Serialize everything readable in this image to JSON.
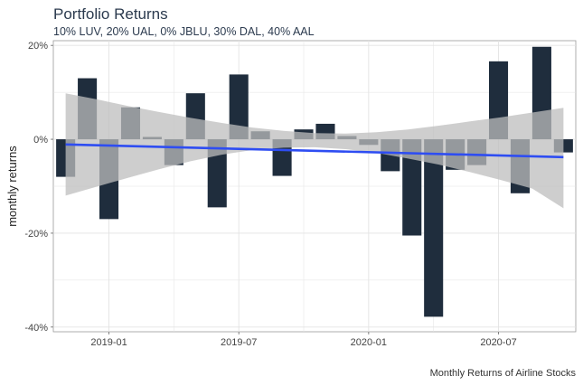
{
  "header": {
    "title": "Portfolio Returns",
    "subtitle": "10% LUV, 20% UAL, 0% JBLU, 30% DAL, 40% AAL"
  },
  "caption": "Monthly Returns of Airline Stocks",
  "colors": {
    "bar": "#1f2d3d",
    "trend": "#2e4df2",
    "ribbon": "#bdbdbd",
    "grid": "#e3e3e3",
    "panel_border": "#9a9a9a"
  },
  "chart_data": {
    "type": "bar",
    "ylabel": "monthly returns",
    "xlabel": "",
    "x": [
      "2018-11",
      "2018-12",
      "2019-01",
      "2019-02",
      "2019-03",
      "2019-04",
      "2019-05",
      "2019-06",
      "2019-07",
      "2019-08",
      "2019-09",
      "2019-10",
      "2019-11",
      "2019-12",
      "2020-01",
      "2020-02",
      "2020-03",
      "2020-04",
      "2020-05",
      "2020-06",
      "2020-07",
      "2020-08",
      "2020-09",
      "2020-10"
    ],
    "values": [
      -0.08,
      0.13,
      -0.17,
      0.068,
      0.005,
      -0.055,
      0.098,
      -0.145,
      0.138,
      0.017,
      -0.078,
      0.021,
      0.033,
      0.007,
      -0.012,
      -0.068,
      -0.205,
      -0.378,
      -0.065,
      -0.055,
      0.166,
      -0.115,
      0.197,
      -0.028
    ],
    "trend": {
      "start": -0.011,
      "end": -0.038
    },
    "ribbon": {
      "upper": [
        0.098,
        0.085,
        0.071,
        0.058,
        0.046,
        0.035,
        0.025,
        0.018,
        0.013,
        0.012,
        0.015,
        0.021,
        0.029,
        0.038,
        0.047,
        0.057,
        0.067
      ],
      "lower": [
        -0.12,
        -0.101,
        -0.082,
        -0.064,
        -0.047,
        -0.033,
        -0.023,
        -0.018,
        -0.017,
        -0.021,
        -0.029,
        -0.041,
        -0.054,
        -0.07,
        -0.087,
        -0.105,
        -0.147
      ]
    },
    "ylim": [
      -0.41,
      0.21
    ],
    "yticks": [
      -0.4,
      -0.2,
      0,
      0.2
    ],
    "ytick_labels": [
      "-40%",
      "-20%",
      "0%",
      "20%"
    ],
    "xticks": [
      "2019-01",
      "2019-07",
      "2020-01",
      "2020-07"
    ],
    "grid": true,
    "legend": "none"
  }
}
